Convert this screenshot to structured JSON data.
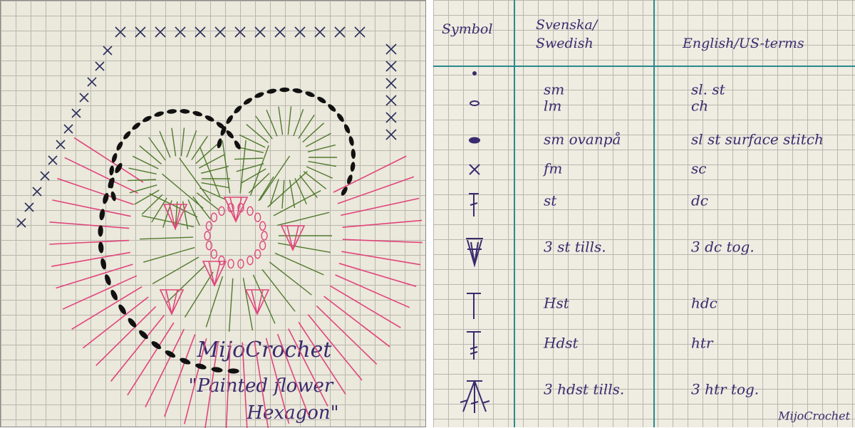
{
  "left": {
    "signature": "MijoCrochet",
    "caption_line1": "\"Painted flower",
    "caption_line2": "Hexagon\""
  },
  "table": {
    "headers": {
      "symbol": "Symbol",
      "swedish_line1": "Svenska/",
      "swedish_line2": "Swedish",
      "english": "English/US-terms"
    },
    "rows": [
      [
        "sm",
        "sl. st"
      ],
      [
        "lm",
        "ch"
      ],
      [
        "sm ovanpå",
        "sl st surface stitch"
      ],
      [
        "fm",
        "sc"
      ],
      [
        "st",
        "dc"
      ],
      [
        "3 st tills.",
        "3 dc tog."
      ],
      [
        "Hst",
        "hdc"
      ],
      [
        "Hdst",
        "htr"
      ],
      [
        "3 hdst tills.",
        "3 htr tog."
      ]
    ],
    "signature": "MijoCrochet"
  }
}
